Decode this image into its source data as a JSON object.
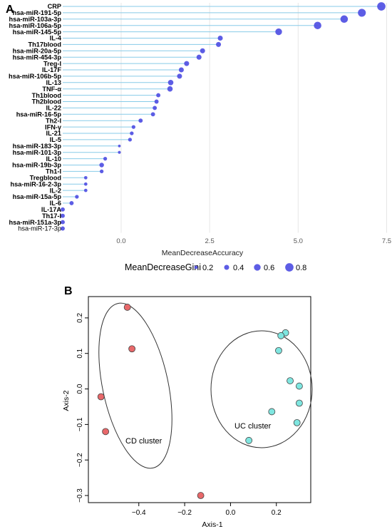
{
  "chart_data": [
    {
      "panel": "A",
      "type": "lollipop",
      "xlabel": "MeanDecreaseAccuracy",
      "xlim": [
        -1.65,
        7.45
      ],
      "xticks": [
        "0.0",
        "2.5",
        "5.0",
        "7.5"
      ],
      "size_legend": {
        "title": "MeanDecreaseGini",
        "values": [
          "0.2",
          "0.4",
          "0.6",
          "0.8"
        ]
      },
      "point_color": "#4f4fe3",
      "stem_color": "#87cbe8",
      "categories": [
        "CRP",
        "hsa-miR-191-5p",
        "hsa-miR-103a-3p",
        "hsa-miR-106a-5p",
        "hsa-miR-145-5p",
        "IL-4",
        "Th17blood",
        "hsa-miR-20a-5p",
        "hsa-miR-454-3p",
        "Treg-I",
        "IL-17F",
        "hsa-miR-106b-5p",
        "IL-13",
        "TNF-α",
        "Th1blood",
        "Th2blood",
        "IL-22",
        "hsa-miR-16-5p",
        "Th2-I",
        "IFN-γ",
        "IL-21",
        "IL-5",
        "hsa-miR-183-3p",
        "hsa-miR-101-3p",
        "IL-10",
        "hsa-miR-19b-3p",
        "Th1-I",
        "Tregblood",
        "hsa-miR-16-2-3p",
        "IL-2",
        "hsa-miR-15a-5p",
        "IL-6",
        "IL-17A",
        "Th17-I",
        "hsa-miR-151a-3p",
        "hsa-miR-17-3p"
      ],
      "values": [
        7.35,
        6.8,
        6.3,
        5.55,
        4.45,
        2.8,
        2.75,
        2.3,
        2.2,
        1.85,
        1.7,
        1.65,
        1.4,
        1.38,
        1.05,
        1.0,
        0.95,
        0.9,
        0.55,
        0.35,
        0.3,
        0.25,
        -0.05,
        -0.05,
        -0.45,
        -0.55,
        -0.55,
        -1.0,
        -1.0,
        -1.0,
        -1.25,
        -1.4,
        -1.65,
        -1.65,
        -1.65,
        -1.65
      ],
      "gini": [
        0.8,
        0.75,
        0.7,
        0.7,
        0.6,
        0.4,
        0.4,
        0.4,
        0.4,
        0.4,
        0.4,
        0.4,
        0.45,
        0.45,
        0.3,
        0.3,
        0.3,
        0.3,
        0.3,
        0.25,
        0.25,
        0.25,
        0.12,
        0.15,
        0.25,
        0.35,
        0.25,
        0.2,
        0.2,
        0.2,
        0.25,
        0.3,
        0.3,
        0.3,
        0.3,
        0.3
      ]
    },
    {
      "panel": "B",
      "type": "scatter",
      "xlabel": "Axis-1",
      "ylabel": "Axis-2",
      "xlim": [
        -0.62,
        0.35
      ],
      "ylim": [
        -0.32,
        0.26
      ],
      "xticks": [
        "−0.4",
        "−0.2",
        "0.0",
        "0.2"
      ],
      "yticks": [
        "−0.3",
        "−0.2",
        "−0.1",
        "0.0",
        "0.1",
        "0.2"
      ],
      "series": [
        {
          "name": "CD cluster",
          "color": "#e8686a",
          "points": [
            [
              -0.45,
              0.23
            ],
            [
              -0.43,
              0.113
            ],
            [
              -0.565,
              -0.022
            ],
            [
              -0.545,
              -0.12
            ],
            [
              -0.13,
              -0.3
            ]
          ]
        },
        {
          "name": "UC cluster",
          "color": "#7fe6e0",
          "points": [
            [
              0.24,
              0.158
            ],
            [
              0.22,
              0.15
            ],
            [
              0.21,
              0.108
            ],
            [
              0.26,
              0.023
            ],
            [
              0.3,
              0.008
            ],
            [
              0.3,
              -0.04
            ],
            [
              0.18,
              -0.064
            ],
            [
              0.29,
              -0.095
            ],
            [
              0.08,
              -0.145
            ]
          ]
        }
      ],
      "cluster_labels": [
        "CD cluster",
        "UC cluster"
      ]
    }
  ],
  "panel_labels": {
    "a": "A",
    "b": "B"
  }
}
